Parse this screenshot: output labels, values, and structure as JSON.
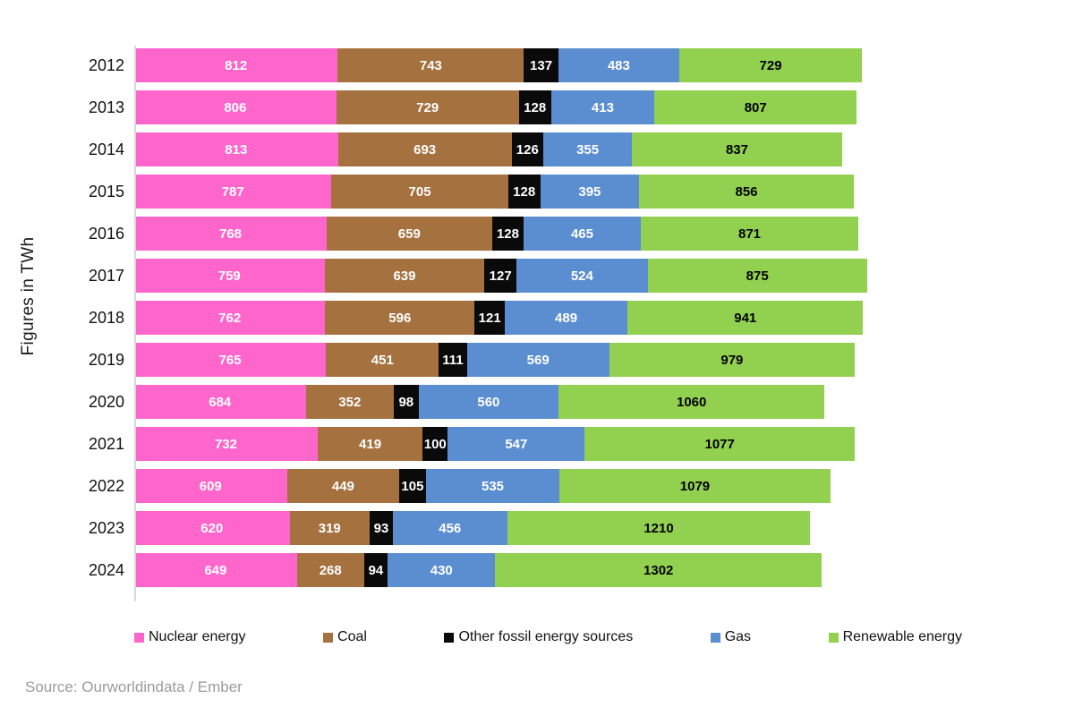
{
  "chart_data": {
    "type": "bar",
    "variant": "horizontal-stacked",
    "title": "",
    "ylabel": "Figures in TWh",
    "xlabel": "",
    "unit": "TWh",
    "grid": false,
    "legend_position": "bottom",
    "categories": [
      "2012",
      "2013",
      "2014",
      "2015",
      "2016",
      "2017",
      "2018",
      "2019",
      "2020",
      "2021",
      "2022",
      "2023",
      "2024"
    ],
    "series": [
      {
        "name": "Nuclear energy",
        "color": "#FF66CC",
        "label_color": "#FFFFFF",
        "values": [
          812,
          806,
          813,
          787,
          768,
          759,
          762,
          765,
          684,
          732,
          609,
          620,
          649
        ]
      },
      {
        "name": "Coal",
        "color": "#A5713F",
        "label_color": "#FFFFFF",
        "values": [
          743,
          729,
          693,
          705,
          659,
          639,
          596,
          451,
          352,
          419,
          449,
          319,
          268
        ]
      },
      {
        "name": "Other fossil energy sources",
        "color": "#0A0A0A",
        "label_color": "#FFFFFF",
        "values": [
          137,
          128,
          126,
          128,
          128,
          127,
          121,
          111,
          98,
          100,
          105,
          93,
          94
        ]
      },
      {
        "name": "Gas",
        "color": "#5B8DD1",
        "label_color": "#FFFFFF",
        "values": [
          483,
          413,
          355,
          395,
          465,
          524,
          489,
          569,
          560,
          547,
          535,
          456,
          430
        ]
      },
      {
        "name": "Renewable energy",
        "color": "#92D050",
        "label_color": "#000000",
        "values": [
          729,
          807,
          837,
          856,
          871,
          875,
          941,
          979,
          1060,
          1077,
          1079,
          1210,
          1302
        ]
      }
    ]
  },
  "footer": {
    "source": "Source: Ourworldindata / Ember"
  }
}
